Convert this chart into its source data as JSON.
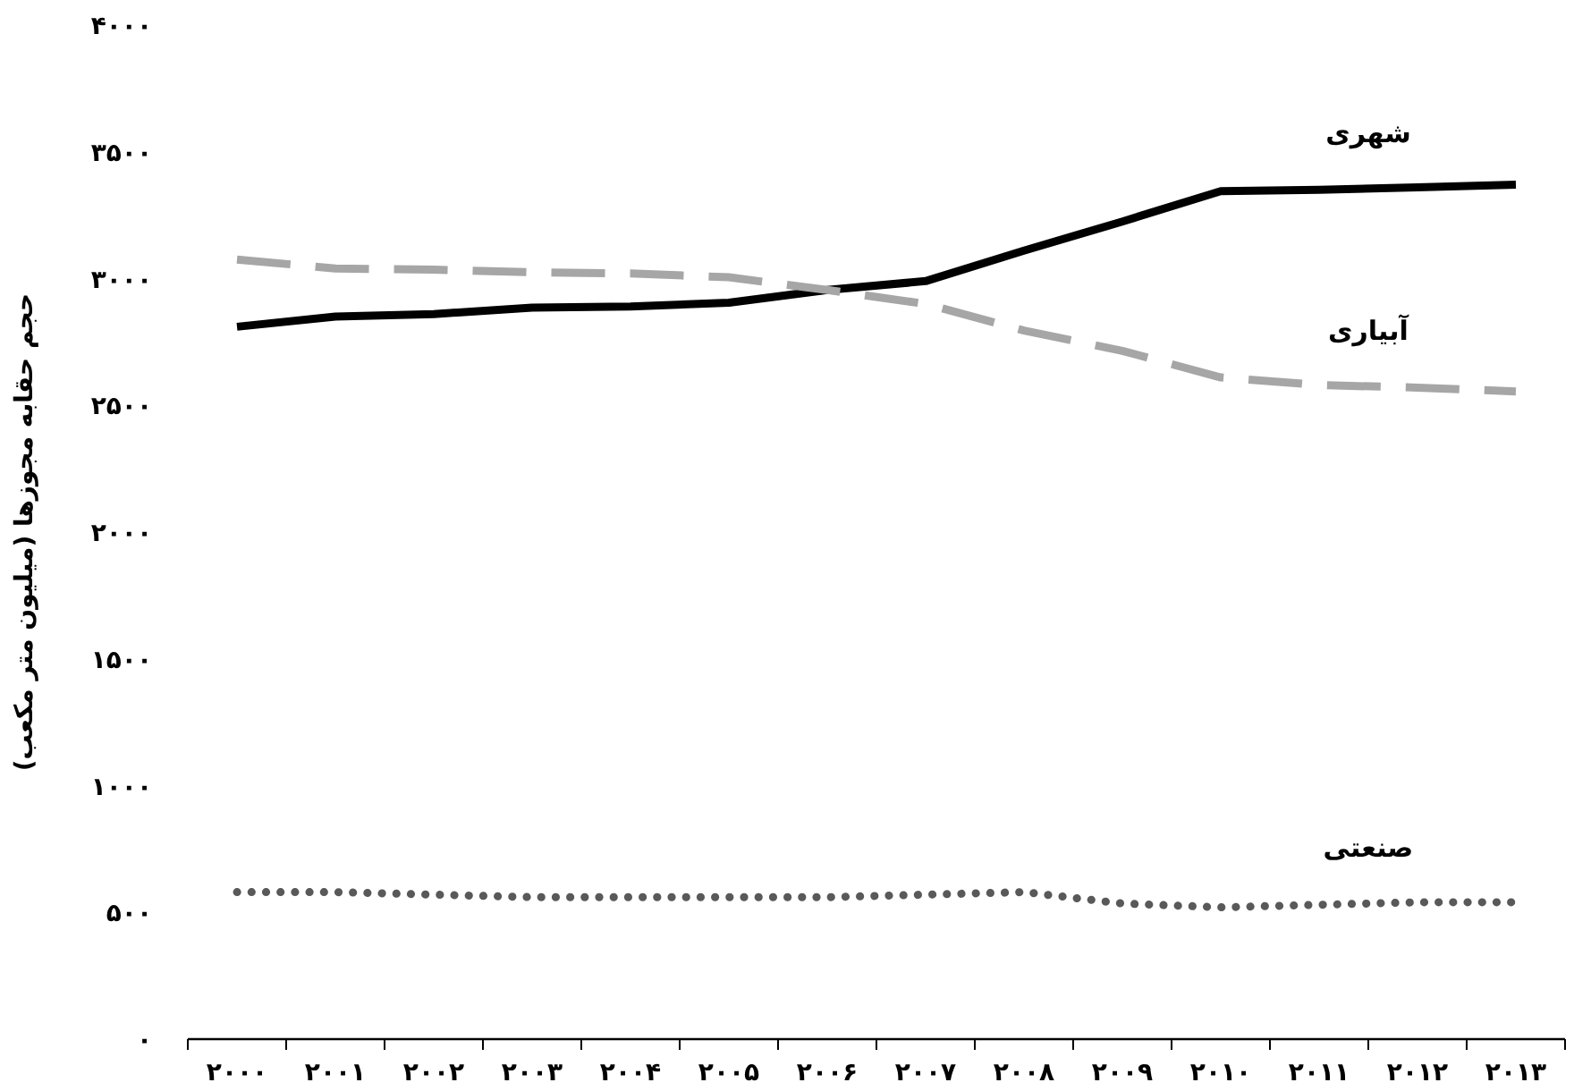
{
  "chart_data": {
    "type": "line",
    "ylabel": "حجم حقابه مجوزها (میلیون متر مکعب)",
    "categories": [
      "۲۰۰۰",
      "۲۰۰۱",
      "۲۰۰۲",
      "۲۰۰۳",
      "۲۰۰۴",
      "۲۰۰۵",
      "۲۰۰۶",
      "۲۰۰۷",
      "۲۰۰۸",
      "۲۰۰۹",
      "۲۰۱۰",
      "۲۰۱۱",
      "۲۰۱۲",
      "۲۰۱۳"
    ],
    "ylim": [
      0,
      4000
    ],
    "yticks": [
      {
        "value": 0,
        "label": "۰"
      },
      {
        "value": 500,
        "label": "۵۰۰"
      },
      {
        "value": 1000,
        "label": "۱۰۰۰"
      },
      {
        "value": 1500,
        "label": "۱۵۰۰"
      },
      {
        "value": 2000,
        "label": "۲۰۰۰"
      },
      {
        "value": 2500,
        "label": "۲۵۰۰"
      },
      {
        "value": 3000,
        "label": "۳۰۰۰"
      },
      {
        "value": 3500,
        "label": "۳۵۰۰"
      },
      {
        "value": 4000,
        "label": "۴۰۰۰"
      }
    ],
    "grid": false,
    "series": [
      {
        "name": "شهری",
        "color": "#000000",
        "line_style": "solid",
        "values": [
          2810,
          2850,
          2860,
          2885,
          2890,
          2905,
          2955,
          2990,
          3110,
          3225,
          3345,
          3350,
          3360,
          3370
        ]
      },
      {
        "name": "آبیاری",
        "color": "#a6a6a6",
        "line_style": "dashed",
        "values": [
          3075,
          3040,
          3035,
          3025,
          3020,
          3005,
          2955,
          2900,
          2795,
          2715,
          2610,
          2580,
          2570,
          2555
        ]
      },
      {
        "name": "صنعتی",
        "color": "#595959",
        "line_style": "dotted",
        "values": [
          580,
          580,
          570,
          560,
          560,
          560,
          560,
          570,
          580,
          535,
          520,
          530,
          540,
          540
        ]
      }
    ]
  }
}
